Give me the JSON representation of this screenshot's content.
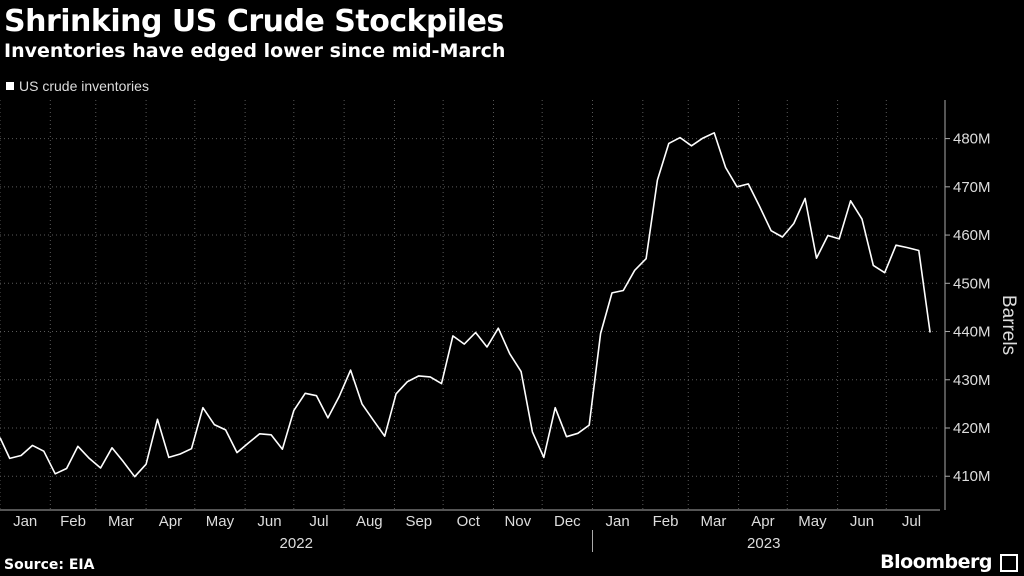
{
  "title": "Shrinking US Crude Stockpiles",
  "subtitle": "Inventories have edged lower since mid-March",
  "source": "Source: EIA",
  "brand": "Bloomberg",
  "colors": {
    "background": "#000000",
    "line": "#ffffff",
    "grid": "#5a5a5a",
    "axis": "#aaaaaa"
  },
  "chart_data": {
    "type": "line",
    "legend": {
      "position": "top-left",
      "entries": [
        "US crude inventories"
      ]
    },
    "ylabel": "Barrels",
    "ylim": [
      403,
      488
    ],
    "y_ticks": [
      410,
      420,
      430,
      440,
      450,
      460,
      470,
      480
    ],
    "y_tick_labels": [
      "410M",
      "420M",
      "430M",
      "440M",
      "450M",
      "460M",
      "470M",
      "480M"
    ],
    "y_axis_position": "right",
    "grid": true,
    "x_range": [
      "2022-01-01",
      "2023-07-31"
    ],
    "x_month_labels": [
      {
        "date": "2022-01-01",
        "label": "Jan"
      },
      {
        "date": "2022-02-01",
        "label": "Feb"
      },
      {
        "date": "2022-03-01",
        "label": "Mar"
      },
      {
        "date": "2022-04-01",
        "label": "Apr"
      },
      {
        "date": "2022-05-01",
        "label": "May"
      },
      {
        "date": "2022-06-01",
        "label": "Jun"
      },
      {
        "date": "2022-07-01",
        "label": "Jul"
      },
      {
        "date": "2022-08-01",
        "label": "Aug"
      },
      {
        "date": "2022-09-01",
        "label": "Sep"
      },
      {
        "date": "2022-10-01",
        "label": "Oct"
      },
      {
        "date": "2022-11-01",
        "label": "Nov"
      },
      {
        "date": "2022-12-01",
        "label": "Dec"
      },
      {
        "date": "2023-01-01",
        "label": "Jan"
      },
      {
        "date": "2023-02-01",
        "label": "Feb"
      },
      {
        "date": "2023-03-01",
        "label": "Mar"
      },
      {
        "date": "2023-04-01",
        "label": "Apr"
      },
      {
        "date": "2023-05-01",
        "label": "May"
      },
      {
        "date": "2023-06-01",
        "label": "Jun"
      },
      {
        "date": "2023-07-01",
        "label": "Jul"
      }
    ],
    "x_year_labels": [
      {
        "label": "2022",
        "start": "2022-01-01",
        "end": "2023-01-01"
      },
      {
        "label": "2023",
        "start": "2023-01-01",
        "end": "2023-07-31"
      }
    ],
    "series": [
      {
        "name": "US crude inventories",
        "x": [
          "2022-01-01",
          "2022-01-07",
          "2022-01-14",
          "2022-01-21",
          "2022-01-28",
          "2022-02-04",
          "2022-02-11",
          "2022-02-18",
          "2022-02-25",
          "2022-03-04",
          "2022-03-11",
          "2022-03-18",
          "2022-03-25",
          "2022-04-01",
          "2022-04-08",
          "2022-04-15",
          "2022-04-22",
          "2022-04-29",
          "2022-05-06",
          "2022-05-13",
          "2022-05-20",
          "2022-05-27",
          "2022-06-03",
          "2022-06-10",
          "2022-06-17",
          "2022-06-24",
          "2022-07-01",
          "2022-07-08",
          "2022-07-15",
          "2022-07-22",
          "2022-07-29",
          "2022-08-05",
          "2022-08-12",
          "2022-08-19",
          "2022-08-26",
          "2022-09-02",
          "2022-09-09",
          "2022-09-16",
          "2022-09-23",
          "2022-09-30",
          "2022-10-07",
          "2022-10-14",
          "2022-10-21",
          "2022-10-28",
          "2022-11-04",
          "2022-11-11",
          "2022-11-18",
          "2022-11-25",
          "2022-12-02",
          "2022-12-09",
          "2022-12-16",
          "2022-12-23",
          "2022-12-30",
          "2023-01-06",
          "2023-01-13",
          "2023-01-20",
          "2023-01-27",
          "2023-02-03",
          "2023-02-10",
          "2023-02-17",
          "2023-02-24",
          "2023-03-03",
          "2023-03-10",
          "2023-03-17",
          "2023-03-24",
          "2023-03-31",
          "2023-04-07",
          "2023-04-14",
          "2023-04-21",
          "2023-04-28",
          "2023-05-05",
          "2023-05-12",
          "2023-05-19",
          "2023-05-26",
          "2023-06-02",
          "2023-06-09",
          "2023-06-16",
          "2023-06-23",
          "2023-06-30",
          "2023-07-07",
          "2023-07-14",
          "2023-07-21",
          "2023-07-28"
        ],
        "values": [
          418.0,
          413.7,
          414.3,
          416.4,
          415.2,
          410.5,
          411.6,
          416.2,
          413.7,
          411.7,
          415.9,
          413.0,
          409.9,
          412.5,
          421.8,
          413.9,
          414.6,
          415.7,
          424.2,
          420.7,
          419.6,
          414.9,
          416.9,
          418.8,
          418.6,
          415.6,
          423.6,
          427.2,
          426.7,
          422.1,
          426.6,
          432.0,
          425.0,
          421.6,
          418.3,
          427.1,
          429.6,
          430.8,
          430.6,
          429.2,
          439.1,
          437.4,
          439.8,
          436.8,
          440.7,
          435.4,
          431.7,
          419.2,
          413.9,
          424.2,
          418.2,
          418.9,
          420.6,
          439.6,
          448.0,
          448.5,
          452.7,
          455.1,
          471.4,
          479.0,
          480.2,
          478.5,
          480.1,
          481.2,
          474.0,
          470.0,
          470.6,
          465.9,
          460.9,
          459.6,
          462.4,
          467.6,
          455.2,
          459.9,
          459.2,
          467.1,
          463.3,
          453.7,
          452.2,
          457.9,
          457.4,
          456.8,
          439.8
        ]
      }
    ]
  }
}
